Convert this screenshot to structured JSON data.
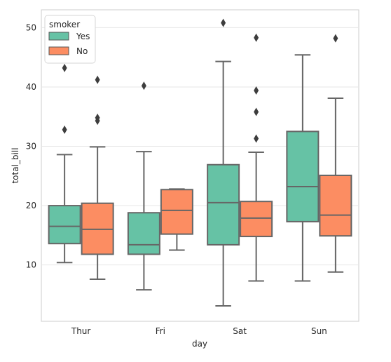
{
  "chart_data": {
    "type": "box",
    "xlabel": "day",
    "ylabel": "total_bill",
    "categories": [
      "Thur",
      "Fri",
      "Sat",
      "Sun"
    ],
    "ylim": [
      0.5,
      53
    ],
    "yticks": [
      10,
      20,
      30,
      40,
      50
    ],
    "grid": true,
    "legend": {
      "title": "smoker",
      "placement": "top-left",
      "entries": [
        "Yes",
        "No"
      ]
    },
    "series": [
      {
        "name": "Yes",
        "color": "#66c2a5",
        "boxes": [
          {
            "whisker_low": 10.4,
            "q1": 13.6,
            "median": 16.5,
            "q3": 20.0,
            "whisker_high": 28.6,
            "outliers": [
              32.8,
              43.2
            ]
          },
          {
            "whisker_low": 5.8,
            "q1": 11.8,
            "median": 13.4,
            "q3": 18.8,
            "whisker_high": 29.1,
            "outliers": [
              40.2
            ]
          },
          {
            "whisker_low": 3.1,
            "q1": 13.4,
            "median": 20.5,
            "q3": 26.9,
            "whisker_high": 44.3,
            "outliers": [
              50.8
            ]
          },
          {
            "whisker_low": 7.3,
            "q1": 17.3,
            "median": 23.2,
            "q3": 32.5,
            "whisker_high": 45.4,
            "outliers": []
          }
        ]
      },
      {
        "name": "No",
        "color": "#fc8d62",
        "boxes": [
          {
            "whisker_low": 7.6,
            "q1": 11.8,
            "median": 16.0,
            "q3": 20.4,
            "whisker_high": 29.9,
            "outliers": [
              34.3,
              34.8,
              41.2
            ]
          },
          {
            "whisker_low": 12.5,
            "q1": 15.2,
            "median": 19.2,
            "q3": 22.7,
            "whisker_high": 22.8,
            "outliers": []
          },
          {
            "whisker_low": 7.3,
            "q1": 14.8,
            "median": 17.9,
            "q3": 20.7,
            "whisker_high": 29.0,
            "outliers": [
              31.3,
              35.8,
              39.4,
              48.3
            ]
          },
          {
            "whisker_low": 8.8,
            "q1": 14.9,
            "median": 18.4,
            "q3": 25.1,
            "whisker_high": 38.1,
            "outliers": [
              48.2
            ]
          }
        ]
      }
    ]
  }
}
